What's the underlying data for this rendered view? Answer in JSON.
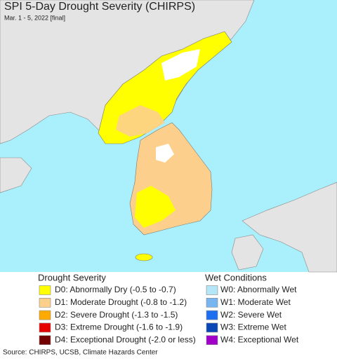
{
  "header": {
    "title": "SPI 5-Day Drought Severity (CHIRPS)",
    "subtitle": "Mar. 1 - 5, 2022 [final]"
  },
  "legend": {
    "drought": {
      "title": "Drought Severity",
      "items": [
        {
          "label": "D0: Abnormally Dry (-0.5 to -0.7)",
          "color": "#ffff00"
        },
        {
          "label": "D1: Moderate Drought (-0.8 to -1.2)",
          "color": "#fcd08c"
        },
        {
          "label": "D2: Severe Drought (-1.3 to -1.5)",
          "color": "#ffaa00"
        },
        {
          "label": "D3: Extreme Drought (-1.6 to -1.9)",
          "color": "#e60000"
        },
        {
          "label": "D4: Exceptional Drought (-2.0 or less)",
          "color": "#730000"
        }
      ]
    },
    "wet": {
      "title": "Wet Conditions",
      "items": [
        {
          "label": "W0: Abnormally Wet",
          "color": "#b4e6f8"
        },
        {
          "label": "W1: Moderate Wet",
          "color": "#78b4f0"
        },
        {
          "label": "W2: Severe Wet",
          "color": "#1e6ef0"
        },
        {
          "label": "W3: Extreme Wet",
          "color": "#0a46b4"
        },
        {
          "label": "W4: Exceptional Wet",
          "color": "#a000c8"
        }
      ]
    }
  },
  "source": "Source: CHIRPS, UCSB, Climate Hazards Center"
}
